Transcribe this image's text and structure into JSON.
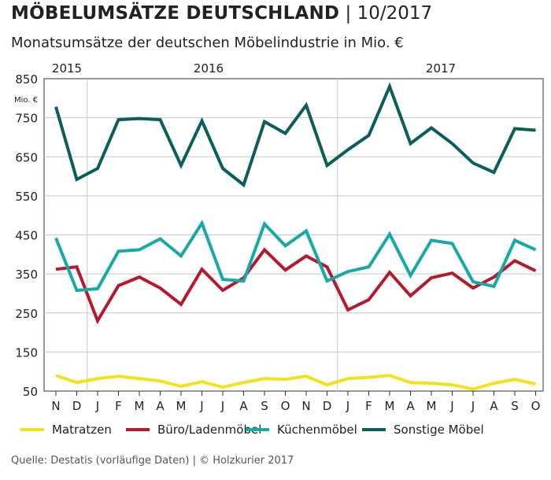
{
  "header": {
    "title_bold": "MÖBELUMSÄTZE DEUTSCHLAND",
    "title_sep": "|",
    "title_date": "10/2017",
    "subtitle": "Monatsumsätze der deutschen Möbelindustrie in Mio. €"
  },
  "footer": {
    "source": "Quelle: Destatis (vorläufige Daten) | © Holzkurier 2017"
  },
  "chart_data": {
    "type": "line",
    "ylabel": "Mio. €",
    "ylim": [
      50,
      850
    ],
    "yticks": [
      50,
      150,
      250,
      350,
      450,
      550,
      650,
      750,
      850
    ],
    "categories": [
      "N",
      "D",
      "J",
      "F",
      "M",
      "A",
      "M",
      "J",
      "J",
      "A",
      "S",
      "O",
      "N",
      "D",
      "J",
      "F",
      "M",
      "A",
      "M",
      "J",
      "J",
      "A",
      "S",
      "O"
    ],
    "year_labels": [
      {
        "label": "2015",
        "index": 0.5
      },
      {
        "label": "2016",
        "index": 7.5
      },
      {
        "label": "2017",
        "index": 18.5
      }
    ],
    "year_dividers": [
      1.5,
      13.5
    ],
    "grid": true,
    "legend_position": "bottom",
    "series": [
      {
        "name": "Matratzen",
        "color": "#f2e21b",
        "values": [
          90,
          72,
          82,
          88,
          82,
          76,
          62,
          74,
          60,
          72,
          82,
          80,
          88,
          66,
          82,
          85,
          90,
          72,
          70,
          66,
          55,
          70,
          80,
          68
        ]
      },
      {
        "name": "Büro/Ladenmöbel",
        "color": "#b5192e",
        "values": [
          362,
          368,
          230,
          320,
          342,
          314,
          272,
          362,
          308,
          340,
          412,
          360,
          396,
          368,
          258,
          284,
          354,
          294,
          340,
          352,
          314,
          342,
          384,
          358
        ]
      },
      {
        "name": "Küchenmöbel",
        "color": "#15aaa5",
        "values": [
          442,
          308,
          312,
          408,
          412,
          440,
          396,
          480,
          336,
          332,
          478,
          422,
          460,
          332,
          356,
          368,
          452,
          346,
          436,
          428,
          330,
          318,
          436,
          412
        ]
      },
      {
        "name": "Sonstige Möbel",
        "color": "#0b5e5b",
        "values": [
          778,
          592,
          620,
          745,
          748,
          745,
          628,
          742,
          620,
          578,
          740,
          710,
          782,
          628,
          668,
          705,
          830,
          684,
          724,
          684,
          634,
          610,
          722,
          718
        ]
      }
    ]
  }
}
